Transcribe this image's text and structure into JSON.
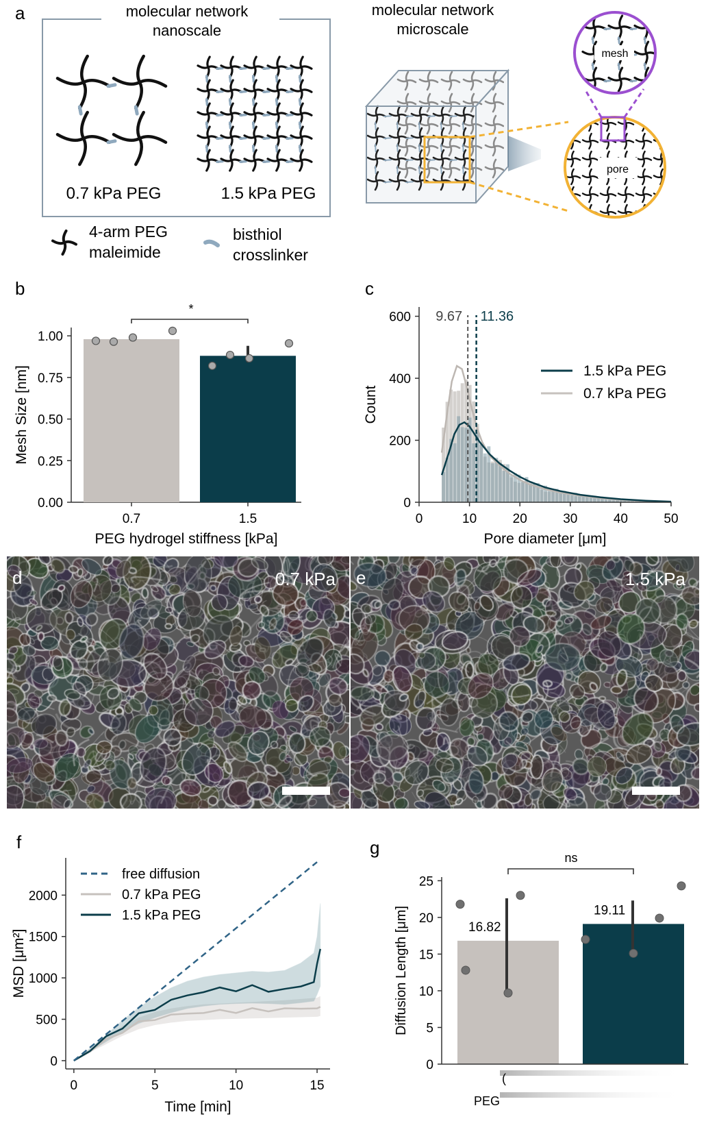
{
  "colors": {
    "stiff": "#0b3d4a",
    "soft": "#c6c1bd",
    "free": "#2f6386",
    "axis": "#333333",
    "orange": "#f2b234",
    "purple": "#9b4fd0",
    "crosslinker": "#8fa9be",
    "box": "#8899a8"
  },
  "panel_a": {
    "letter": "a",
    "nano_title_line1": "molecular network",
    "nano_title_line2": "nanoscale",
    "micro_title_line1": "molecular network",
    "micro_title_line2": "microscale",
    "label_soft": "0.7 kPa PEG",
    "label_stiff": "1.5 kPa PEG",
    "mesh_label": "mesh",
    "pore_label": "pore",
    "legend_peg_line1": "4-arm PEG",
    "legend_peg_line2": "maleimide",
    "legend_linker_line1": "bisthiol",
    "legend_linker_line2": "crosslinker",
    "peg_icon": "cross-molecule-icon",
    "linker_icon": "crosslinker-icon"
  },
  "panel_d": {
    "letter": "d",
    "label": "0.7 kPa"
  },
  "panel_e": {
    "letter": "e",
    "label": "1.5 kPa"
  },
  "chart_data": [
    {
      "id": "b",
      "letter": "b",
      "type": "bar",
      "categories": [
        "0.7",
        "1.5"
      ],
      "values": [
        0.98,
        0.88
      ],
      "errors": [
        [
          0.97,
          1.0
        ],
        [
          0.84,
          0.94
        ]
      ],
      "points": [
        [
          0.97,
          0.965,
          0.99,
          1.03
        ],
        [
          0.82,
          0.885,
          0.865,
          0.955
        ]
      ],
      "xlabel": "PEG hydrogel stiffness [kPa]",
      "ylabel": "Mesh Size [nm]",
      "ylim": [
        0,
        1.05
      ],
      "yticks": [
        "0.00",
        "0.25",
        "0.50",
        "0.75",
        "1.00"
      ],
      "significance": "*"
    },
    {
      "id": "c",
      "letter": "c",
      "type": "histogram",
      "xlabel": "Pore diameter [μm]",
      "ylabel": "Count",
      "xlim": [
        0,
        50
      ],
      "ylim": [
        0,
        630
      ],
      "xticks": [
        "0",
        "10",
        "20",
        "30",
        "40",
        "50"
      ],
      "yticks": [
        "0",
        "200",
        "400",
        "600"
      ],
      "median_soft": "9.67",
      "median_stiff": "11.36",
      "legend_placement": "right",
      "series": [
        {
          "name": "1.5 kPa PEG",
          "kde_x": [
            4.5,
            6,
            7,
            8,
            9,
            10,
            11,
            12,
            14,
            16,
            18,
            20,
            22,
            25,
            28,
            32,
            36,
            40,
            45,
            50
          ],
          "kde_y": [
            88,
            165,
            220,
            250,
            258,
            245,
            220,
            195,
            155,
            125,
            102,
            82,
            66,
            48,
            36,
            24,
            16,
            10,
            5,
            2
          ]
        },
        {
          "name": "0.7 kPa PEG",
          "kde_x": [
            4.5,
            5.5,
            6.5,
            7.5,
            8.5,
            9.5,
            10.5,
            11.5,
            12.5,
            14,
            16,
            18,
            20,
            22,
            25,
            28,
            32,
            36,
            40,
            45,
            50
          ],
          "kde_y": [
            160,
            280,
            390,
            440,
            430,
            370,
            300,
            240,
            195,
            150,
            118,
            92,
            72,
            57,
            42,
            31,
            21,
            13,
            8,
            4,
            1
          ]
        }
      ]
    },
    {
      "id": "f",
      "letter": "f",
      "type": "line",
      "xlabel": "Time [min]",
      "ylabel": "MSD [μm²]",
      "xlim": [
        -0.5,
        15.8
      ],
      "ylim": [
        -100,
        2450
      ],
      "xticks": [
        "0",
        "5",
        "10",
        "15"
      ],
      "yticks": [
        "0",
        "500",
        "1000",
        "1500",
        "2000"
      ],
      "legend_placement": "top-left",
      "series": [
        {
          "name": "free diffusion",
          "x": [
            0,
            15
          ],
          "y": [
            0,
            2400
          ]
        },
        {
          "name": "0.7 kPa PEG",
          "x": [
            0,
            1,
            2,
            3,
            4,
            5,
            6,
            7,
            8,
            9,
            10,
            11,
            12,
            13,
            14,
            15,
            15.2
          ],
          "y": [
            0,
            120,
            240,
            360,
            450,
            510,
            545,
            570,
            585,
            595,
            600,
            610,
            615,
            620,
            630,
            640,
            650
          ],
          "lower": [
            0,
            100,
            200,
            300,
            380,
            430,
            460,
            480,
            490,
            500,
            505,
            510,
            515,
            520,
            525,
            530,
            540
          ],
          "upper": [
            0,
            140,
            280,
            420,
            520,
            590,
            630,
            660,
            680,
            690,
            700,
            710,
            720,
            730,
            745,
            760,
            780
          ]
        },
        {
          "name": "1.5 kPa PEG",
          "x": [
            0,
            1,
            2,
            3,
            4,
            5,
            6,
            7,
            8,
            9,
            10,
            11,
            12,
            13,
            14,
            14.8,
            15,
            15.2
          ],
          "y": [
            0,
            130,
            270,
            420,
            540,
            640,
            720,
            790,
            840,
            860,
            870,
            880,
            860,
            850,
            900,
            960,
            1150,
            1350
          ],
          "lower": [
            0,
            110,
            230,
            350,
            450,
            520,
            580,
            630,
            660,
            680,
            690,
            695,
            690,
            680,
            700,
            720,
            800,
            900
          ],
          "upper": [
            0,
            150,
            310,
            490,
            640,
            770,
            880,
            960,
            1010,
            1040,
            1060,
            1080,
            1070,
            1090,
            1180,
            1300,
            1500,
            1900
          ]
        }
      ]
    },
    {
      "id": "g",
      "letter": "g",
      "type": "bar",
      "categories": [
        "",
        ""
      ],
      "values": [
        16.82,
        19.11
      ],
      "value_labels": [
        "16.82",
        "19.11"
      ],
      "errors": [
        [
          9.7,
          22.6
        ],
        [
          15.1,
          22.3
        ]
      ],
      "points": [
        [
          21.8,
          12.8,
          9.7,
          23.0
        ],
        [
          17.0,
          15.1,
          19.9,
          24.3
        ]
      ],
      "ylabel": "Diffusion Length [μm]",
      "ylim": [
        0,
        25.5
      ],
      "yticks": [
        "0",
        "5",
        "10",
        "15",
        "20",
        "25"
      ],
      "significance": "ns",
      "cut_label": "PEG"
    }
  ]
}
